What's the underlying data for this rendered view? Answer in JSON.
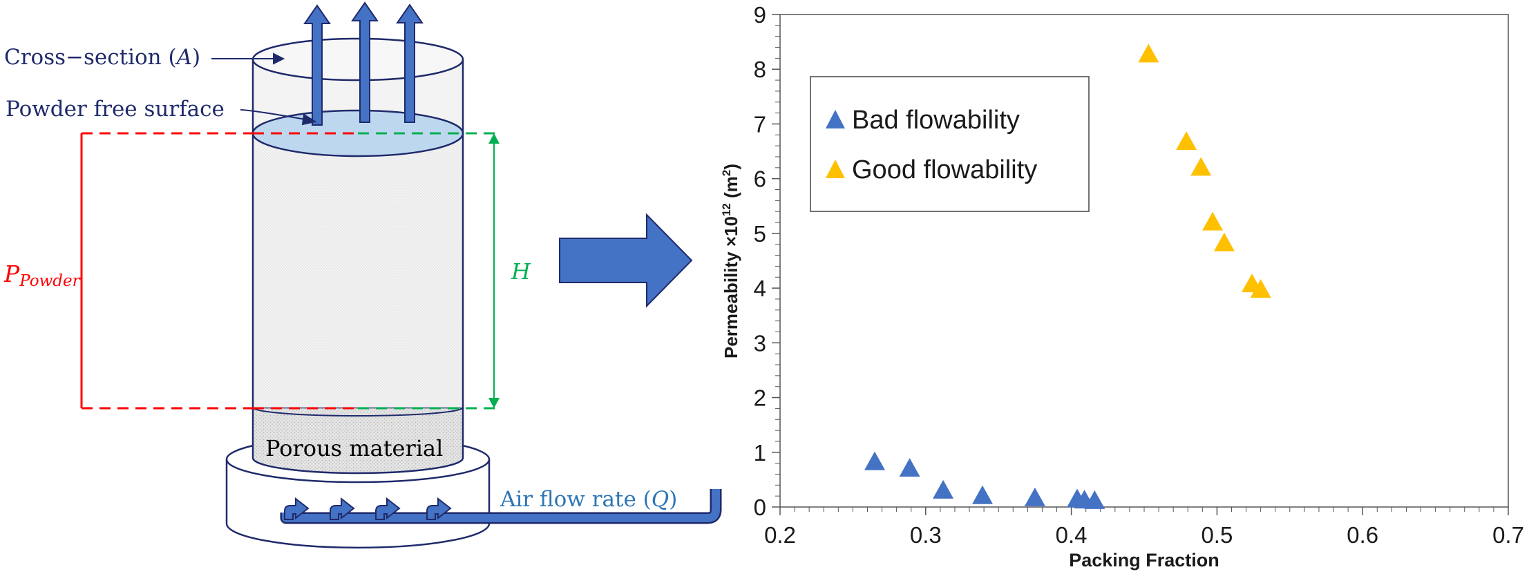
{
  "diagram": {
    "cross_section_label": "Cross−section (",
    "cross_section_symbol": "A",
    "cross_section_close": ")",
    "free_surface_label": "Powder free surface",
    "pressure_symbol": "P",
    "pressure_subscript": "Powder",
    "height_symbol": "H",
    "porous_label": "Porous material",
    "airflow_label": "Air flow rate (",
    "airflow_symbol": "Q",
    "airflow_close": ")",
    "colors": {
      "dark_blue": "#1f2a6b",
      "arrow_blue": "#4472c4",
      "air_text": "#2e75b6",
      "red": "#ff0000",
      "green": "#00b050",
      "powder_surface": "#bdd7ee"
    }
  },
  "chart_data": {
    "type": "scatter",
    "xlabel": "Packing Fraction",
    "ylabel_main": "Permeability ×10",
    "ylabel_exp": "12",
    "ylabel_unit": " (m",
    "ylabel_unit_exp": "2",
    "ylabel_close": ")",
    "xlim": [
      0.2,
      0.7
    ],
    "ylim": [
      0,
      9
    ],
    "x_ticks": [
      "0.2",
      "0.3",
      "0.4",
      "0.5",
      "0.6",
      "0.7"
    ],
    "y_ticks": [
      "0",
      "1",
      "2",
      "3",
      "4",
      "5",
      "6",
      "7",
      "8",
      "9"
    ],
    "grid": false,
    "legend_position": "top-left",
    "series": [
      {
        "name": "Bad flowability",
        "color": "#4472c4",
        "marker": "triangle",
        "points": [
          {
            "x": 0.265,
            "y": 0.8
          },
          {
            "x": 0.289,
            "y": 0.68
          },
          {
            "x": 0.312,
            "y": 0.28
          },
          {
            "x": 0.339,
            "y": 0.18
          },
          {
            "x": 0.375,
            "y": 0.14
          },
          {
            "x": 0.404,
            "y": 0.12
          },
          {
            "x": 0.409,
            "y": 0.1
          },
          {
            "x": 0.416,
            "y": 0.09
          }
        ]
      },
      {
        "name": "Good flowability",
        "color": "#ffc000",
        "marker": "triangle",
        "points": [
          {
            "x": 0.453,
            "y": 8.25
          },
          {
            "x": 0.479,
            "y": 6.65
          },
          {
            "x": 0.489,
            "y": 6.18
          },
          {
            "x": 0.497,
            "y": 5.18
          },
          {
            "x": 0.505,
            "y": 4.8
          },
          {
            "x": 0.524,
            "y": 4.05
          },
          {
            "x": 0.53,
            "y": 3.95
          }
        ]
      }
    ]
  }
}
